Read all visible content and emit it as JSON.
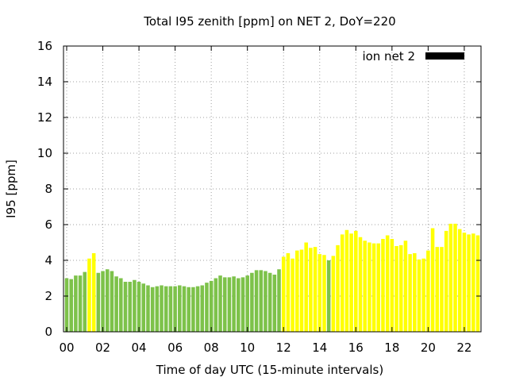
{
  "chart_data": {
    "type": "bar",
    "title": "Total I95 zenith [ppm] on NET 2, DoY=220",
    "xlabel": "Time of day UTC (15-minute intervals)",
    "ylabel": "I95 [ppm]",
    "ylim": [
      0,
      16
    ],
    "xlim": [
      0,
      22.75
    ],
    "yticks": [
      0,
      2,
      4,
      6,
      8,
      10,
      12,
      14,
      16
    ],
    "xtick_values": [
      0,
      2,
      4,
      6,
      8,
      10,
      12,
      14,
      16,
      18,
      20,
      22
    ],
    "xtick_labels": [
      "00",
      "02",
      "04",
      "06",
      "08",
      "10",
      "12",
      "14",
      "16",
      "18",
      "20",
      "22"
    ],
    "grid": true,
    "legend": {
      "label": "ion net 2",
      "position": "top-right",
      "color": "#000000"
    },
    "bar_width_hours": 0.2,
    "colors": {
      "green": "#7dc24a",
      "yellow": "#ffff00"
    },
    "series": [
      {
        "x": [
          0.0,
          0.25,
          0.5,
          0.75,
          1.0,
          1.25,
          1.5,
          1.75,
          2.0,
          2.25,
          2.5,
          2.75,
          3.0,
          3.25,
          3.5,
          3.75,
          4.0,
          4.25,
          4.5,
          4.75,
          5.0,
          5.25,
          5.5,
          5.75,
          6.0,
          6.25,
          6.5,
          6.75,
          7.0,
          7.25,
          7.5,
          7.75,
          8.0,
          8.25,
          8.5,
          8.75,
          9.0,
          9.25,
          9.5,
          9.75,
          10.0,
          10.25,
          10.5,
          10.75,
          11.0,
          11.25,
          11.5,
          11.75,
          12.0,
          12.25,
          12.5,
          12.75,
          13.0,
          13.25,
          13.5,
          13.75,
          14.0,
          14.25,
          14.5,
          14.75,
          15.0,
          15.25,
          15.5,
          15.75,
          16.0,
          16.25,
          16.5,
          16.75,
          17.0,
          17.25,
          17.5,
          17.75,
          18.0,
          18.25,
          18.5,
          18.75,
          19.0,
          19.25,
          19.5,
          19.75,
          20.0,
          20.25,
          20.5,
          20.75,
          21.0,
          21.25,
          21.5,
          21.75,
          22.0,
          22.25,
          22.5,
          22.75
        ],
        "values": [
          3.0,
          2.95,
          3.15,
          3.15,
          3.35,
          4.1,
          4.4,
          3.3,
          3.4,
          3.5,
          3.4,
          3.1,
          3.0,
          2.8,
          2.8,
          2.9,
          2.8,
          2.7,
          2.6,
          2.5,
          2.55,
          2.6,
          2.55,
          2.55,
          2.55,
          2.6,
          2.55,
          2.5,
          2.5,
          2.55,
          2.6,
          2.75,
          2.85,
          3.0,
          3.15,
          3.05,
          3.05,
          3.1,
          3.0,
          3.05,
          3.15,
          3.3,
          3.45,
          3.45,
          3.4,
          3.3,
          3.2,
          3.5,
          4.2,
          4.4,
          4.1,
          4.55,
          4.6,
          5.0,
          4.7,
          4.75,
          4.35,
          4.3,
          4.0,
          4.25,
          4.85,
          5.45,
          5.7,
          5.5,
          5.65,
          5.3,
          5.1,
          5.0,
          4.95,
          4.95,
          5.2,
          5.4,
          5.2,
          4.8,
          4.85,
          5.1,
          4.35,
          4.4,
          4.05,
          4.1,
          4.55,
          5.8,
          4.75,
          4.75,
          5.65,
          6.05,
          6.05,
          5.75,
          5.55,
          5.45,
          5.5,
          5.4
        ],
        "colors": [
          "green",
          "green",
          "green",
          "green",
          "green",
          "yellow",
          "yellow",
          "green",
          "green",
          "green",
          "green",
          "green",
          "green",
          "green",
          "green",
          "green",
          "green",
          "green",
          "green",
          "green",
          "green",
          "green",
          "green",
          "green",
          "green",
          "green",
          "green",
          "green",
          "green",
          "green",
          "green",
          "green",
          "green",
          "green",
          "green",
          "green",
          "green",
          "green",
          "green",
          "green",
          "green",
          "green",
          "green",
          "green",
          "green",
          "green",
          "green",
          "green",
          "yellow",
          "yellow",
          "yellow",
          "yellow",
          "yellow",
          "yellow",
          "yellow",
          "yellow",
          "yellow",
          "yellow",
          "green",
          "yellow",
          "yellow",
          "yellow",
          "yellow",
          "yellow",
          "yellow",
          "yellow",
          "yellow",
          "yellow",
          "yellow",
          "yellow",
          "yellow",
          "yellow",
          "yellow",
          "yellow",
          "yellow",
          "yellow",
          "yellow",
          "yellow",
          "yellow",
          "yellow",
          "yellow",
          "yellow",
          "yellow",
          "yellow",
          "yellow",
          "yellow",
          "yellow",
          "yellow",
          "yellow",
          "yellow",
          "yellow",
          "yellow"
        ]
      }
    ]
  }
}
